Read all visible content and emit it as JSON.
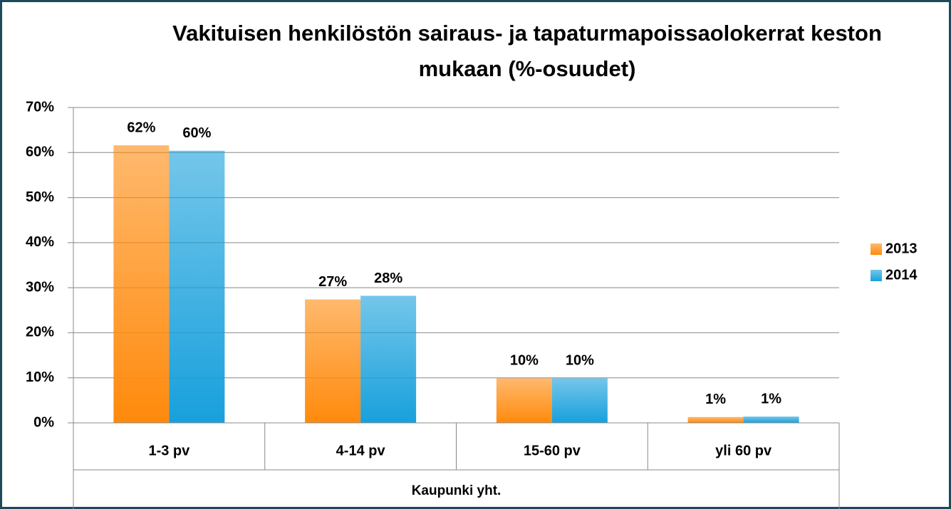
{
  "chart_data": {
    "type": "bar",
    "title": "Vakituisen henkilöstön sairaus- ja tapaturmapoissaolokerrat keston mukaan (%-osuudet)",
    "x_group_label": "Kaupunki yht.",
    "categories": [
      "1-3 pv",
      "4-14 pv",
      "15-60 pv",
      "yli 60 pv"
    ],
    "series": [
      {
        "name": "2013",
        "color": "#ff8a0c",
        "values": [
          61.6,
          27.4,
          9.9,
          1.3
        ],
        "value_labels": [
          "62%",
          "27%",
          "10%",
          "1%"
        ]
      },
      {
        "name": "2014",
        "color": "#18a0dc",
        "values": [
          60.4,
          28.2,
          9.9,
          1.4
        ],
        "value_labels": [
          "60%",
          "28%",
          "10%",
          "1%"
        ]
      }
    ],
    "ylim": [
      0,
      70
    ],
    "yticks": [
      {
        "value": 0,
        "label": "0%"
      },
      {
        "value": 10,
        "label": "10%"
      },
      {
        "value": 20,
        "label": "20%"
      },
      {
        "value": 30,
        "label": "30%"
      },
      {
        "value": 40,
        "label": "40%"
      },
      {
        "value": 50,
        "label": "50%"
      },
      {
        "value": 60,
        "label": "60%"
      },
      {
        "value": 70,
        "label": "70%"
      }
    ],
    "grid": true,
    "legend": "right"
  }
}
